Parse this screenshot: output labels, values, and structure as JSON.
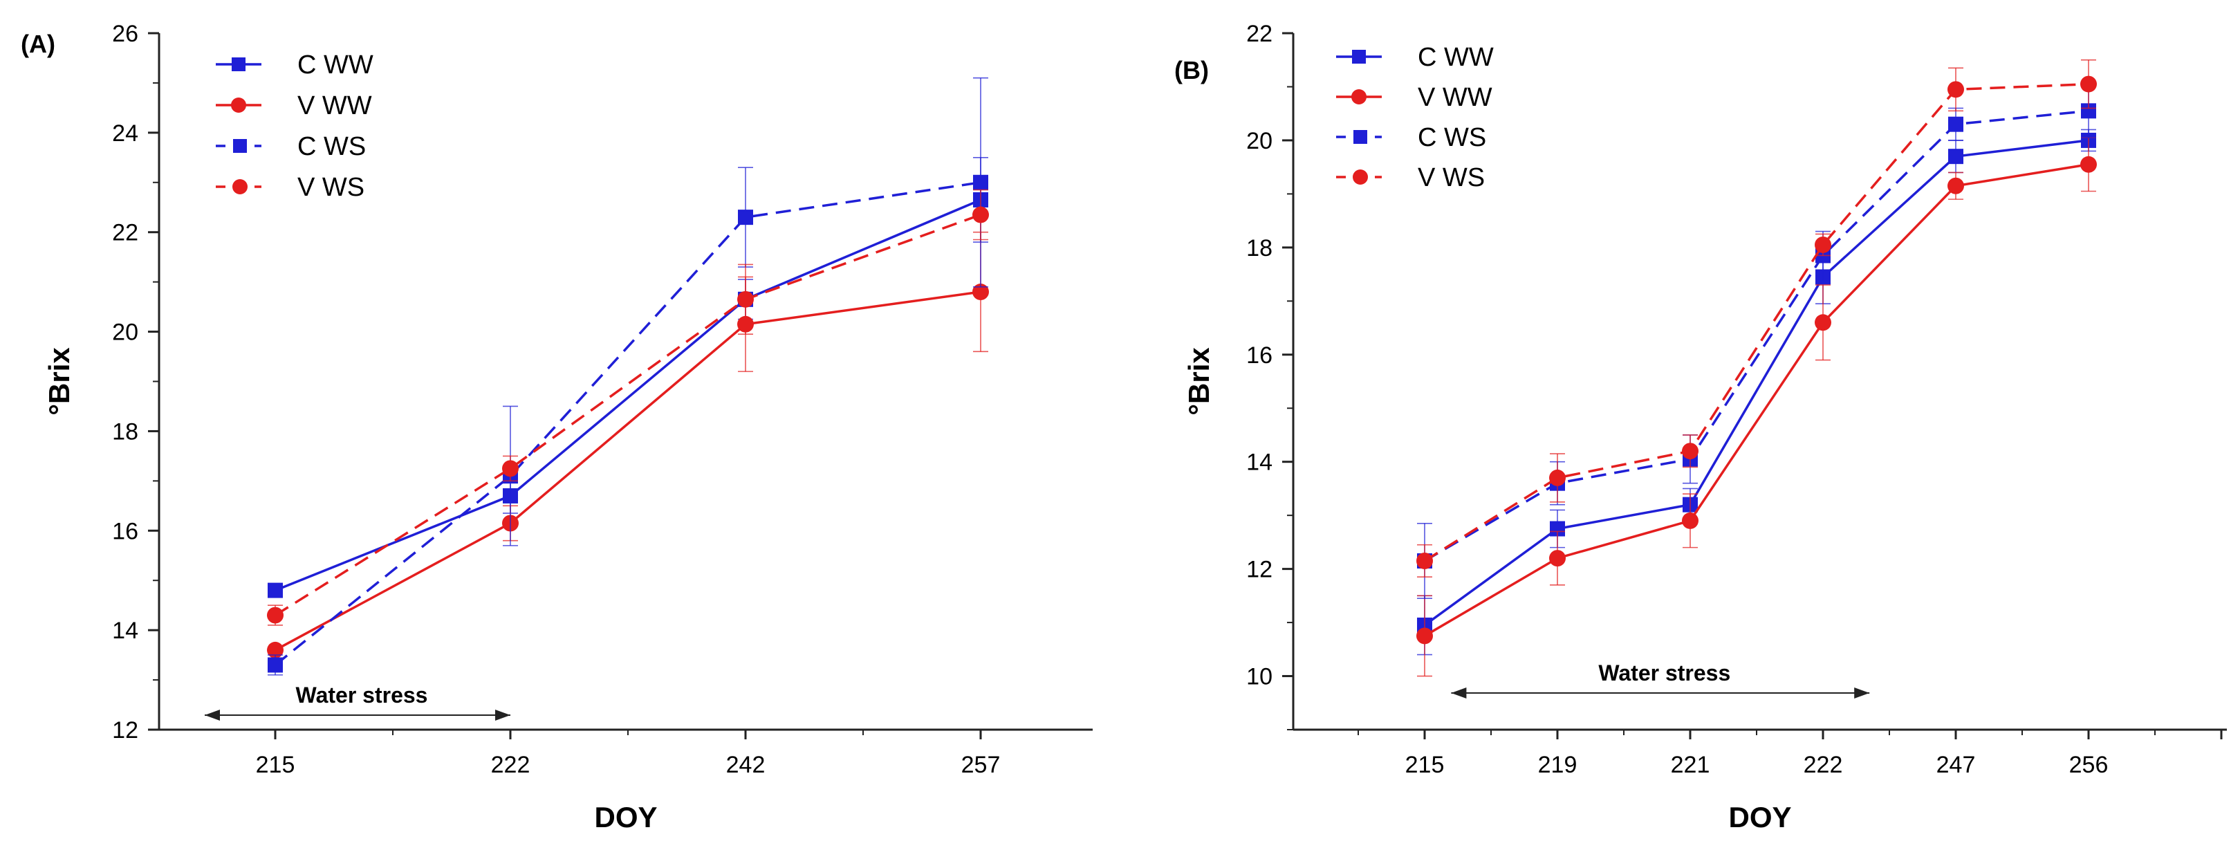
{
  "chart_data": [
    {
      "type": "line",
      "panel_label": "(A)",
      "xlabel": "DOY",
      "ylabel": "°Brix",
      "categories": [
        "215",
        "222",
        "242",
        "257"
      ],
      "ylim": [
        12,
        26
      ],
      "yticks": [
        "12",
        "14",
        "16",
        "18",
        "20",
        "22",
        "24",
        "26"
      ],
      "grid": false,
      "legend_position": "top-left",
      "annotation": {
        "text": "Water stress",
        "from_index": -0.3,
        "to_index": 1.0
      },
      "series": [
        {
          "name": "C WW",
          "color": "#1f1fd6",
          "dashed": false,
          "marker": "square",
          "values": [
            14.8,
            16.7,
            20.65,
            22.65
          ],
          "errors": [
            0.0,
            0.35,
            0.4,
            0.85
          ]
        },
        {
          "name": "V WW",
          "color": "#e41e1e",
          "dashed": false,
          "marker": "circle",
          "values": [
            13.6,
            16.15,
            20.15,
            20.8
          ],
          "errors": [
            0.0,
            0.35,
            0.95,
            1.2
          ]
        },
        {
          "name": "C WS",
          "color": "#1f1fd6",
          "dashed": true,
          "marker": "square",
          "values": [
            13.3,
            17.1,
            22.3,
            23.0
          ],
          "errors": [
            0.2,
            1.4,
            1.0,
            2.1
          ]
        },
        {
          "name": "V WS",
          "color": "#e41e1e",
          "dashed": true,
          "marker": "circle",
          "values": [
            14.3,
            17.25,
            20.65,
            22.35
          ],
          "errors": [
            0.2,
            0.25,
            0.7,
            0.5
          ]
        }
      ]
    },
    {
      "type": "line",
      "panel_label": "(B)",
      "xlabel": "DOY",
      "ylabel": "°Brix",
      "categories": [
        "215",
        "219",
        "221",
        "222",
        "247",
        "256"
      ],
      "ylim": [
        9,
        22
      ],
      "yticks": [
        "10",
        "12",
        "14",
        "16",
        "18",
        "20",
        "22"
      ],
      "grid": false,
      "legend_position": "top-left",
      "annotation": {
        "text": "Water stress",
        "from_index": 0.2,
        "to_index": 3.35
      },
      "series": [
        {
          "name": "C WW",
          "color": "#1f1fd6",
          "dashed": false,
          "marker": "square",
          "values": [
            10.95,
            12.75,
            13.2,
            17.45,
            19.7,
            20.0
          ],
          "errors": [
            0.55,
            0.35,
            0.3,
            0.5,
            0.3,
            0.2
          ]
        },
        {
          "name": "V WW",
          "color": "#e41e1e",
          "dashed": false,
          "marker": "circle",
          "values": [
            10.75,
            12.2,
            12.9,
            16.6,
            19.15,
            19.55
          ],
          "errors": [
            0.75,
            0.5,
            0.5,
            0.7,
            0.25,
            0.5
          ]
        },
        {
          "name": "C WS",
          "color": "#1f1fd6",
          "dashed": true,
          "marker": "square",
          "values": [
            12.15,
            13.6,
            14.05,
            17.85,
            20.3,
            20.55
          ],
          "errors": [
            0.7,
            0.4,
            0.45,
            0.45,
            0.3,
            0.5
          ]
        },
        {
          "name": "V WS",
          "color": "#e41e1e",
          "dashed": true,
          "marker": "circle",
          "values": [
            12.15,
            13.7,
            14.2,
            18.05,
            20.95,
            21.05
          ],
          "errors": [
            0.3,
            0.45,
            0.3,
            0.2,
            0.4,
            0.45
          ]
        }
      ]
    }
  ]
}
